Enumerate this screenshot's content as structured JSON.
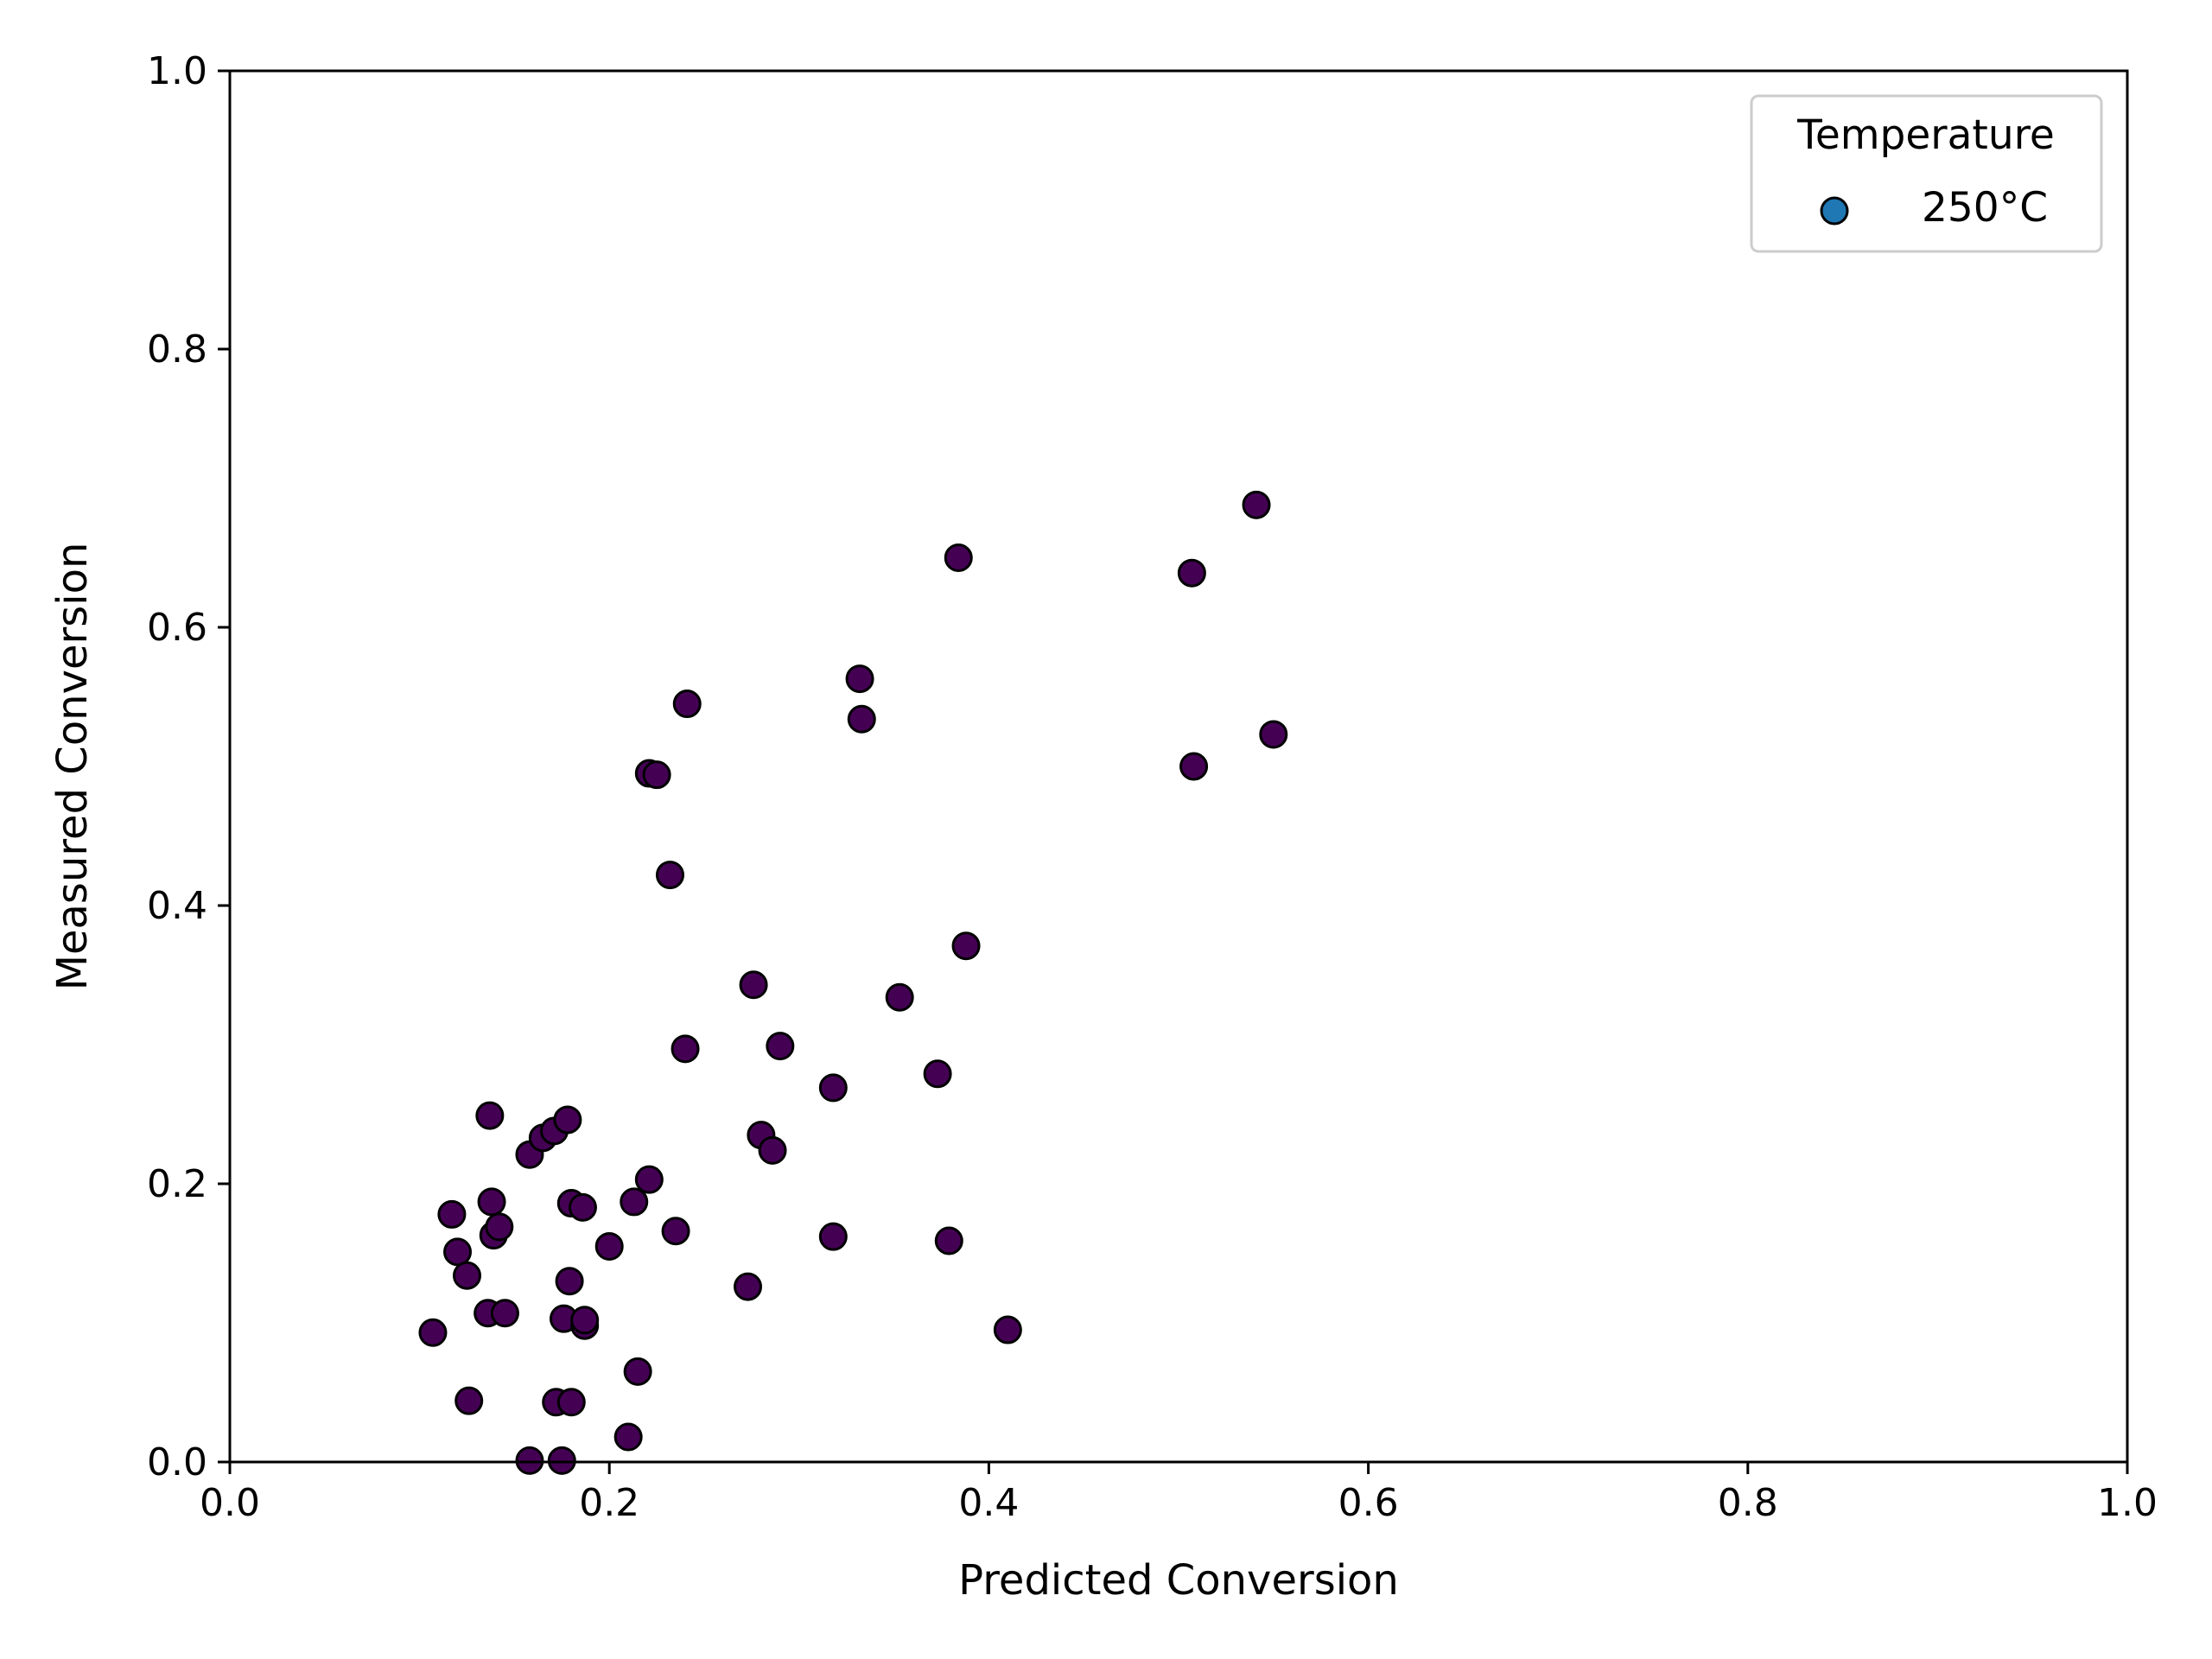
{
  "chart_data": {
    "type": "scatter",
    "xlabel": "Predicted Conversion",
    "ylabel": "Measured Conversion",
    "xlim": [
      0.0,
      1.0
    ],
    "ylim": [
      0.0,
      1.0
    ],
    "x_ticks": [
      "0.0",
      "0.2",
      "0.4",
      "0.6",
      "0.8",
      "1.0"
    ],
    "y_ticks": [
      "0.0",
      "0.2",
      "0.4",
      "0.6",
      "0.8",
      "1.0"
    ],
    "grid": false,
    "legend": {
      "title": "Temperature",
      "placement": "top-right",
      "entries": [
        {
          "label": "250°C",
          "color": "#1f77b4"
        }
      ]
    },
    "marker_color": "#440154",
    "marker_edge": "#000000",
    "points": [
      {
        "x": 0.107,
        "y": 0.093
      },
      {
        "x": 0.117,
        "y": 0.178
      },
      {
        "x": 0.12,
        "y": 0.151
      },
      {
        "x": 0.125,
        "y": 0.134
      },
      {
        "x": 0.126,
        "y": 0.044
      },
      {
        "x": 0.136,
        "y": 0.107
      },
      {
        "x": 0.137,
        "y": 0.249
      },
      {
        "x": 0.138,
        "y": 0.187
      },
      {
        "x": 0.139,
        "y": 0.163
      },
      {
        "x": 0.142,
        "y": 0.169
      },
      {
        "x": 0.145,
        "y": 0.107
      },
      {
        "x": 0.158,
        "y": 0.221
      },
      {
        "x": 0.158,
        "y": 0.001
      },
      {
        "x": 0.165,
        "y": 0.233
      },
      {
        "x": 0.171,
        "y": 0.238
      },
      {
        "x": 0.172,
        "y": 0.043
      },
      {
        "x": 0.175,
        "y": 0.001
      },
      {
        "x": 0.176,
        "y": 0.103
      },
      {
        "x": 0.178,
        "y": 0.246
      },
      {
        "x": 0.179,
        "y": 0.13
      },
      {
        "x": 0.18,
        "y": 0.043
      },
      {
        "x": 0.18,
        "y": 0.186
      },
      {
        "x": 0.186,
        "y": 0.183
      },
      {
        "x": 0.187,
        "y": 0.098
      },
      {
        "x": 0.187,
        "y": 0.102
      },
      {
        "x": 0.2,
        "y": 0.155
      },
      {
        "x": 0.21,
        "y": 0.018
      },
      {
        "x": 0.213,
        "y": 0.187
      },
      {
        "x": 0.215,
        "y": 0.065
      },
      {
        "x": 0.221,
        "y": 0.203
      },
      {
        "x": 0.221,
        "y": 0.495
      },
      {
        "x": 0.225,
        "y": 0.494
      },
      {
        "x": 0.232,
        "y": 0.422
      },
      {
        "x": 0.235,
        "y": 0.166
      },
      {
        "x": 0.24,
        "y": 0.297
      },
      {
        "x": 0.241,
        "y": 0.545
      },
      {
        "x": 0.273,
        "y": 0.126
      },
      {
        "x": 0.276,
        "y": 0.343
      },
      {
        "x": 0.28,
        "y": 0.235
      },
      {
        "x": 0.286,
        "y": 0.224
      },
      {
        "x": 0.29,
        "y": 0.299
      },
      {
        "x": 0.318,
        "y": 0.269
      },
      {
        "x": 0.318,
        "y": 0.162
      },
      {
        "x": 0.332,
        "y": 0.563
      },
      {
        "x": 0.333,
        "y": 0.534
      },
      {
        "x": 0.353,
        "y": 0.334
      },
      {
        "x": 0.373,
        "y": 0.279
      },
      {
        "x": 0.379,
        "y": 0.159
      },
      {
        "x": 0.384,
        "y": 0.65
      },
      {
        "x": 0.388,
        "y": 0.371
      },
      {
        "x": 0.41,
        "y": 0.095
      },
      {
        "x": 0.507,
        "y": 0.639
      },
      {
        "x": 0.508,
        "y": 0.5
      },
      {
        "x": 0.541,
        "y": 0.688
      },
      {
        "x": 0.55,
        "y": 0.523
      }
    ]
  }
}
